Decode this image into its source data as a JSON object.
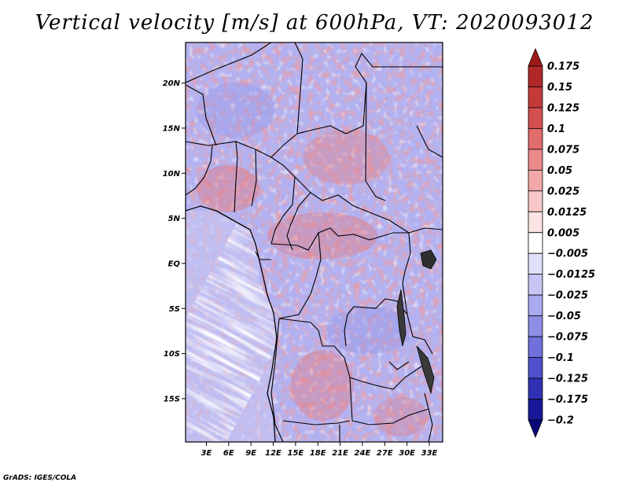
{
  "title": "Vertical velocity [m/s] at 600hPa, VT: 2020093012",
  "map": {
    "region": "Central Africa",
    "lat_labels": [
      {
        "label": "20N",
        "lat": 20
      },
      {
        "label": "15N",
        "lat": 15
      },
      {
        "label": "10N",
        "lat": 10
      },
      {
        "label": "5N",
        "lat": 5
      },
      {
        "label": "EQ",
        "lat": 0
      },
      {
        "label": "5S",
        "lat": -5
      },
      {
        "label": "10S",
        "lat": -10
      },
      {
        "label": "15S",
        "lat": -15
      }
    ],
    "lon_labels": [
      {
        "label": "3E",
        "lon": 3
      },
      {
        "label": "6E",
        "lon": 6
      },
      {
        "label": "9E",
        "lon": 9
      },
      {
        "label": "12E",
        "lon": 12
      },
      {
        "label": "15E",
        "lon": 15
      },
      {
        "label": "18E",
        "lon": 18
      },
      {
        "label": "21E",
        "lon": 21
      },
      {
        "label": "24E",
        "lon": 24
      },
      {
        "label": "27E",
        "lon": 27
      },
      {
        "label": "30E",
        "lon": 30
      },
      {
        "label": "33E",
        "lon": 33
      }
    ],
    "lon_range": [
      0.2,
      34.8
    ],
    "lat_range": [
      -19.8,
      24.5
    ]
  },
  "colorbar": {
    "labels": [
      "0.175",
      "0.15",
      "0.125",
      "0.1",
      "0.075",
      "0.05",
      "0.025",
      "0.0125",
      "0.005",
      "−0.005",
      "−0.0125",
      "−0.025",
      "−0.05",
      "−0.075",
      "−0.1",
      "−0.125",
      "−0.175",
      "−0.2"
    ],
    "colors": [
      "#a01a1a",
      "#b02828",
      "#c43a3a",
      "#d45050",
      "#e06c6c",
      "#ea8a8a",
      "#f2a8a8",
      "#f8c8c8",
      "#fce4e4",
      "#ffffff",
      "#e0e0fa",
      "#c6c6f4",
      "#aaaaee",
      "#8e8ee6",
      "#7070dc",
      "#5050cc",
      "#3030b4",
      "#181898",
      "#080878"
    ]
  },
  "credit": "GrADS: IGES/COLA"
}
